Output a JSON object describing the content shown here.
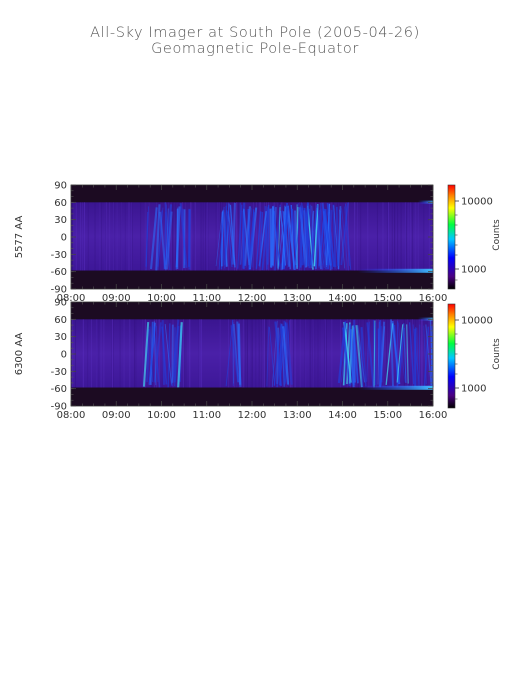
{
  "title": "All-Sky Imager at South Pole (2005-04-26)",
  "subtitle": "Geomagnetic Pole-Equator",
  "colors": {
    "background_dark": "#1a0a20",
    "band_purple": "#4a1fa0",
    "aurora_blue": "#1e5cff",
    "aurora_cyan": "#30e0ff"
  },
  "chart_data": [
    {
      "type": "heatmap",
      "ylabel": "5577 AA",
      "x_ticks": [
        "08:00",
        "09:00",
        "10:00",
        "11:00",
        "12:00",
        "13:00",
        "14:00",
        "15:00",
        "16:00"
      ],
      "x_range": [
        "08:00",
        "16:00"
      ],
      "y_ticks": [
        "90",
        "60",
        "30",
        "0",
        "-30",
        "-60",
        "-90"
      ],
      "y_range": [
        -90,
        90
      ],
      "colorbar": {
        "label": "Counts",
        "scale": "log",
        "ticks": [
          "10000",
          "1000"
        ]
      },
      "features": [
        {
          "t_start": "09:40",
          "t_end": "10:40",
          "intensity": 0.35
        },
        {
          "t_start": "11:20",
          "t_end": "13:50",
          "intensity": 0.75
        },
        {
          "t_start": "13:50",
          "t_end": "14:10",
          "intensity": 0.4
        }
      ]
    },
    {
      "type": "heatmap",
      "ylabel": "6300 AA",
      "x_ticks": [
        "08:00",
        "09:00",
        "10:00",
        "11:00",
        "12:00",
        "13:00",
        "14:00",
        "15:00",
        "16:00"
      ],
      "x_range": [
        "08:00",
        "16:00"
      ],
      "y_ticks": [
        "90",
        "60",
        "30",
        "0",
        "-30",
        "-60",
        "-90"
      ],
      "y_range": [
        -90,
        90
      ],
      "colorbar": {
        "label": "Counts",
        "scale": "log",
        "ticks": [
          "10000",
          "1000"
        ]
      },
      "features": [
        {
          "t_start": "09:40",
          "t_end": "10:40",
          "intensity": 0.35
        },
        {
          "t_start": "11:30",
          "t_end": "11:45",
          "intensity": 0.5
        },
        {
          "t_start": "12:20",
          "t_end": "12:50",
          "intensity": 0.55
        },
        {
          "t_start": "14:00",
          "t_end": "16:00",
          "intensity": 0.45
        }
      ]
    }
  ]
}
